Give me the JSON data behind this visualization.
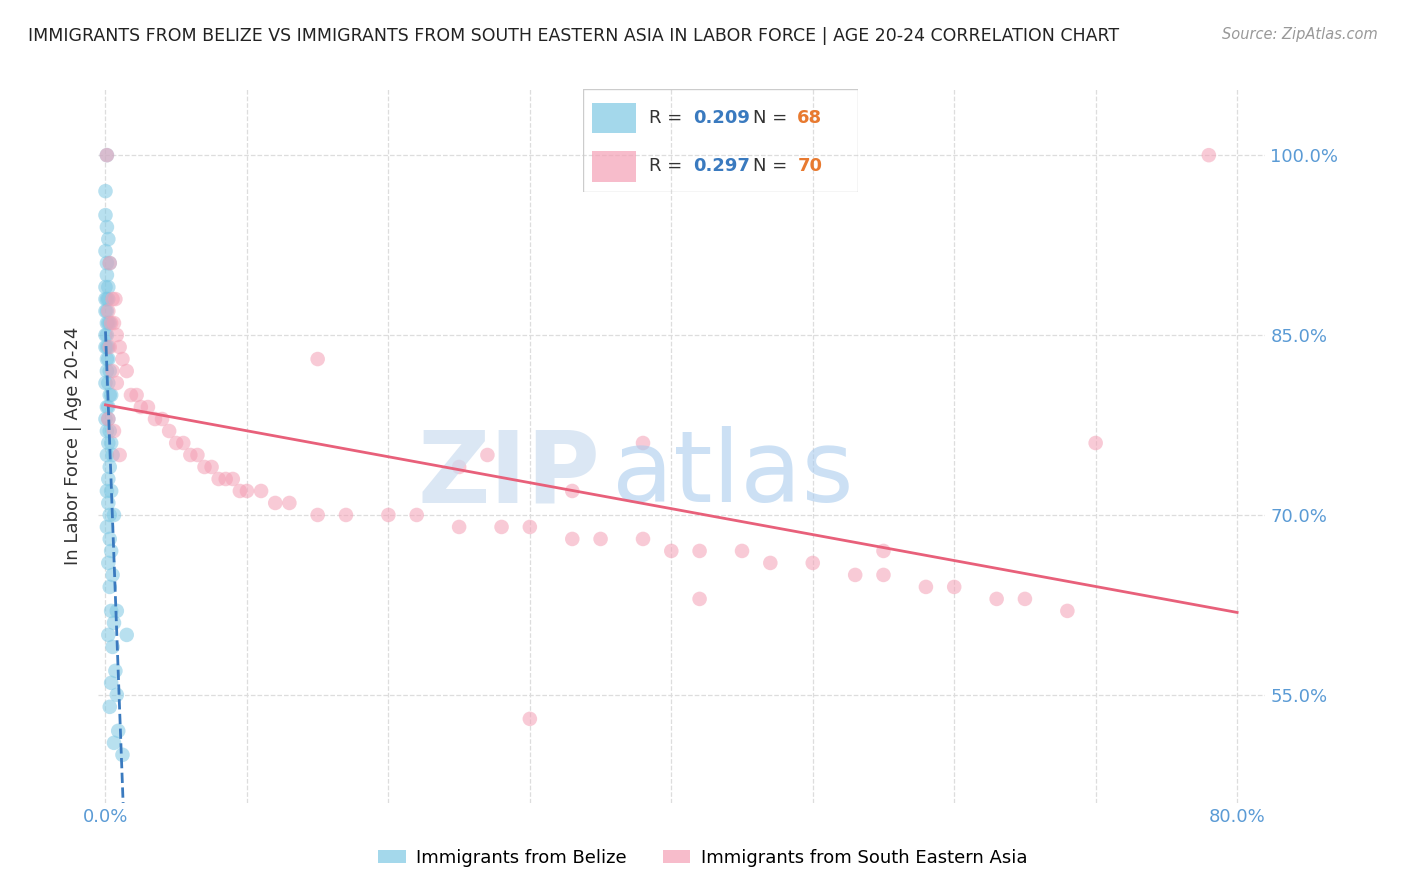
{
  "title": "IMMIGRANTS FROM BELIZE VS IMMIGRANTS FROM SOUTH EASTERN ASIA IN LABOR FORCE | AGE 20-24 CORRELATION CHART",
  "source": "Source: ZipAtlas.com",
  "ylabel": "In Labor Force | Age 20-24",
  "xlim": [
    -0.005,
    0.82
  ],
  "ylim": [
    0.46,
    1.055
  ],
  "yticks": [
    0.55,
    0.7,
    0.85,
    1.0
  ],
  "ytick_labels": [
    "55.0%",
    "70.0%",
    "85.0%",
    "100.0%"
  ],
  "xticks": [
    0.0,
    0.1,
    0.2,
    0.3,
    0.4,
    0.5,
    0.6,
    0.7,
    0.8
  ],
  "xtick_labels_show": [
    "0.0%",
    "80.0%"
  ],
  "belize_R": 0.209,
  "belize_N": 68,
  "sea_R": 0.297,
  "sea_N": 70,
  "belize_color": "#7ec8e3",
  "sea_color": "#f4a0b5",
  "trend_belize_color": "#3a7abf",
  "trend_sea_color": "#e8607a",
  "grid_color": "#dddddd",
  "tick_color": "#5b9bd5",
  "title_color": "#222222",
  "source_color": "#999999",
  "ylabel_color": "#333333",
  "watermark_zip_color": "#ccddf0",
  "watermark_atlas_color": "#aaccee",
  "legend_R_color": "#3a7abf",
  "legend_N_color": "#e87a30",
  "belize_x": [
    0.001,
    0.0,
    0.0,
    0.001,
    0.002,
    0.0,
    0.001,
    0.003,
    0.001,
    0.0,
    0.002,
    0.001,
    0.0,
    0.002,
    0.001,
    0.0,
    0.001,
    0.003,
    0.002,
    0.001,
    0.0,
    0.002,
    0.001,
    0.0,
    0.001,
    0.002,
    0.003,
    0.001,
    0.0,
    0.002,
    0.004,
    0.003,
    0.002,
    0.001,
    0.0,
    0.002,
    0.001,
    0.003,
    0.004,
    0.002,
    0.005,
    0.001,
    0.003,
    0.002,
    0.004,
    0.001,
    0.002,
    0.003,
    0.006,
    0.001,
    0.003,
    0.004,
    0.002,
    0.005,
    0.003,
    0.004,
    0.006,
    0.002,
    0.005,
    0.007,
    0.004,
    0.008,
    0.003,
    0.009,
    0.006,
    0.012,
    0.008,
    0.015
  ],
  "belize_y": [
    1.0,
    0.97,
    0.95,
    0.94,
    0.93,
    0.92,
    0.91,
    0.91,
    0.9,
    0.89,
    0.89,
    0.88,
    0.88,
    0.88,
    0.87,
    0.87,
    0.86,
    0.86,
    0.86,
    0.85,
    0.85,
    0.84,
    0.84,
    0.84,
    0.83,
    0.83,
    0.82,
    0.82,
    0.81,
    0.81,
    0.8,
    0.8,
    0.79,
    0.79,
    0.78,
    0.78,
    0.77,
    0.77,
    0.76,
    0.76,
    0.75,
    0.75,
    0.74,
    0.73,
    0.72,
    0.72,
    0.71,
    0.7,
    0.7,
    0.69,
    0.68,
    0.67,
    0.66,
    0.65,
    0.64,
    0.62,
    0.61,
    0.6,
    0.59,
    0.57,
    0.56,
    0.55,
    0.54,
    0.52,
    0.51,
    0.5,
    0.62,
    0.6
  ],
  "sea_x": [
    0.001,
    0.003,
    0.005,
    0.007,
    0.002,
    0.004,
    0.006,
    0.008,
    0.01,
    0.003,
    0.012,
    0.005,
    0.015,
    0.008,
    0.018,
    0.022,
    0.025,
    0.03,
    0.002,
    0.035,
    0.04,
    0.006,
    0.045,
    0.05,
    0.055,
    0.06,
    0.01,
    0.065,
    0.07,
    0.075,
    0.08,
    0.085,
    0.09,
    0.095,
    0.1,
    0.11,
    0.12,
    0.13,
    0.15,
    0.17,
    0.2,
    0.22,
    0.25,
    0.28,
    0.3,
    0.33,
    0.35,
    0.38,
    0.4,
    0.42,
    0.45,
    0.47,
    0.5,
    0.53,
    0.55,
    0.58,
    0.6,
    0.63,
    0.65,
    0.68,
    0.7,
    0.38,
    0.27,
    0.33,
    0.55,
    0.25,
    0.42,
    0.15,
    0.3,
    0.78
  ],
  "sea_y": [
    1.0,
    0.91,
    0.88,
    0.88,
    0.87,
    0.86,
    0.86,
    0.85,
    0.84,
    0.84,
    0.83,
    0.82,
    0.82,
    0.81,
    0.8,
    0.8,
    0.79,
    0.79,
    0.78,
    0.78,
    0.78,
    0.77,
    0.77,
    0.76,
    0.76,
    0.75,
    0.75,
    0.75,
    0.74,
    0.74,
    0.73,
    0.73,
    0.73,
    0.72,
    0.72,
    0.72,
    0.71,
    0.71,
    0.7,
    0.7,
    0.7,
    0.7,
    0.69,
    0.69,
    0.69,
    0.68,
    0.68,
    0.68,
    0.67,
    0.67,
    0.67,
    0.66,
    0.66,
    0.65,
    0.65,
    0.64,
    0.64,
    0.63,
    0.63,
    0.62,
    0.76,
    0.76,
    0.75,
    0.72,
    0.67,
    0.74,
    0.63,
    0.83,
    0.53,
    1.0
  ]
}
